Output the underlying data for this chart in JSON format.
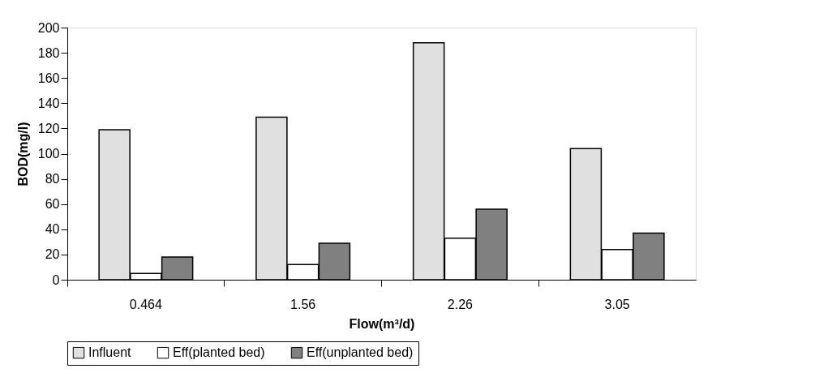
{
  "chart_data": {
    "type": "bar",
    "xlabel": "Flow(m³/d)",
    "ylabel": "BOD(mg/l)",
    "categories": [
      "0.464",
      "1.56",
      "2.26",
      "3.05"
    ],
    "series": [
      {
        "name": "Influent",
        "color": "#e0e0e0",
        "values": [
          119,
          129,
          188,
          104
        ]
      },
      {
        "name": "Eff(planted bed)",
        "color": "#ffffff",
        "values": [
          5,
          12,
          33,
          24
        ]
      },
      {
        "name": "Eff(unplanted bed)",
        "color": "#808080",
        "values": [
          18,
          29,
          56,
          37
        ]
      }
    ],
    "ylim": [
      0,
      200
    ],
    "yticks": [
      0,
      20,
      40,
      60,
      80,
      100,
      120,
      140,
      160,
      180,
      200
    ],
    "grid": false,
    "legend": "bottom"
  }
}
